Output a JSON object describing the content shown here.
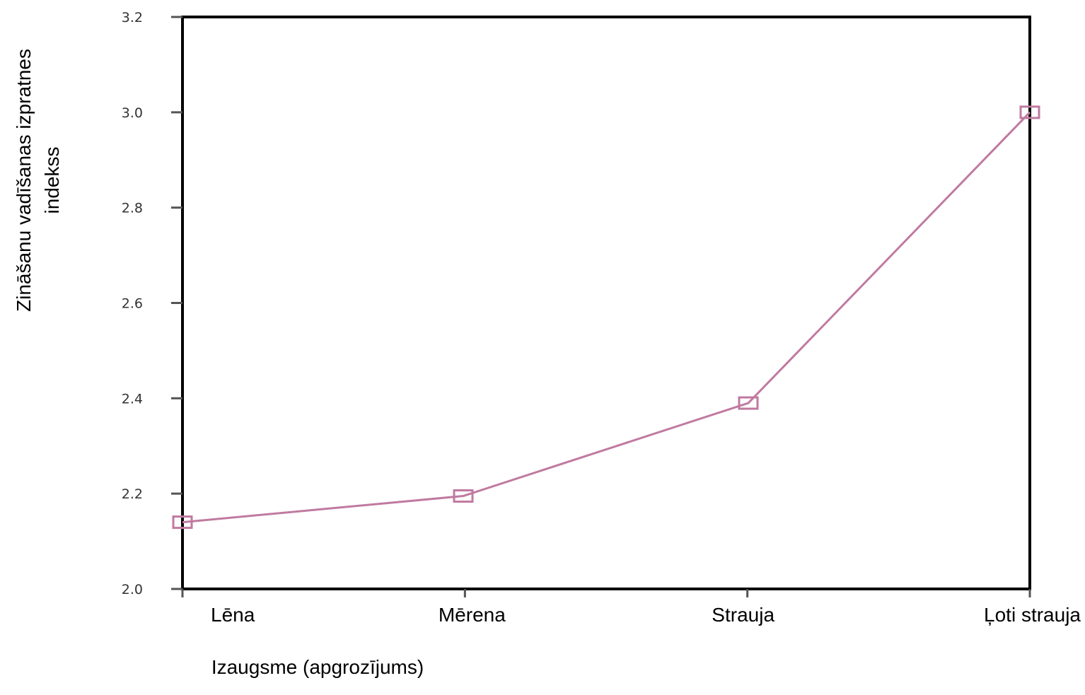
{
  "chart_data": {
    "type": "line",
    "categories": [
      "Lēna",
      "Mērena",
      "Strauja",
      "Ļoti strauja"
    ],
    "series": [
      {
        "values": [
          2.14,
          2.195,
          2.39,
          3.0
        ],
        "color": "#c07aa0",
        "marker": "square"
      }
    ],
    "ylim": [
      2.0,
      3.2
    ],
    "yticks": [
      "2.0",
      "2.2",
      "2.4",
      "2.6",
      "2.8",
      "3.0",
      "3.2"
    ],
    "xlabel": "Izaugsme (apgrozījums)",
    "ylabel_lines": [
      "Zināšanu vadīšanas izpratnes",
      "indekss"
    ],
    "grid": false,
    "legend": "none",
    "frame_color": "#000000"
  }
}
